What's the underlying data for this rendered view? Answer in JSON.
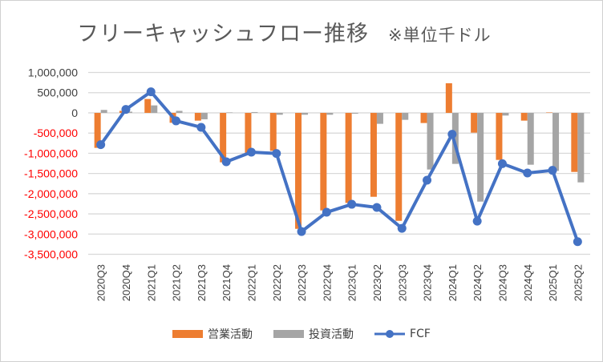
{
  "chart_data": {
    "type": "bar+line",
    "title": "フリーキャッシュフロー推移",
    "subtitle": "※単位千ドル",
    "categories": [
      "2020Q3",
      "2020Q4",
      "2021Q1",
      "2021Q2",
      "2021Q3",
      "2021Q4",
      "2022Q1",
      "2022Q2",
      "2022Q3",
      "2022Q4",
      "2023Q1",
      "2023Q2",
      "2023Q3",
      "2023Q4",
      "2024Q1",
      "2024Q2",
      "2024Q3",
      "2024Q4",
      "2025Q1",
      "2025Q2"
    ],
    "series": [
      {
        "name": "営業活動",
        "type": "bar",
        "color": "#ED7D31",
        "values": [
          -866000,
          50000,
          344000,
          -245000,
          -192000,
          -1223000,
          -990000,
          -940000,
          -2870000,
          -2414000,
          -2229000,
          -2077000,
          -2672000,
          -251000,
          734000,
          -489000,
          -1164000,
          -192000,
          10000,
          -1462000
        ]
      },
      {
        "name": "投資活動",
        "type": "bar",
        "color": "#A5A5A5",
        "values": [
          73000,
          30000,
          185000,
          50000,
          -159000,
          10000,
          20000,
          -46000,
          -46000,
          -46000,
          -20000,
          -271000,
          -172000,
          -1402000,
          -1263000,
          -2196000,
          -66000,
          -1283000,
          -1435000,
          -1720000
        ]
      },
      {
        "name": "FCF",
        "type": "line",
        "color": "#4472C4",
        "values": [
          -787000,
          86000,
          522000,
          -198000,
          -357000,
          -1210000,
          -972000,
          -1005000,
          -2937000,
          -2460000,
          -2262000,
          -2341000,
          -2857000,
          -1667000,
          -529000,
          -2679000,
          -1257000,
          -1488000,
          -1422000,
          -3188000
        ]
      }
    ],
    "ylim": [
      -3500000,
      1000000
    ],
    "yticks": [
      1000000,
      500000,
      0,
      -500000,
      -1000000,
      -1500000,
      -2000000,
      -2500000,
      -3000000,
      -3500000
    ],
    "ytick_labels": [
      "1,000,000",
      "500,000",
      "0",
      "-500,000",
      "-1,000,000",
      "-1,500,000",
      "-2,000,000",
      "-2,500,000",
      "-3,000,000",
      "-3,500,000"
    ],
    "negative_label_color": "#FF0000",
    "grid": true,
    "legend": "bottom"
  }
}
